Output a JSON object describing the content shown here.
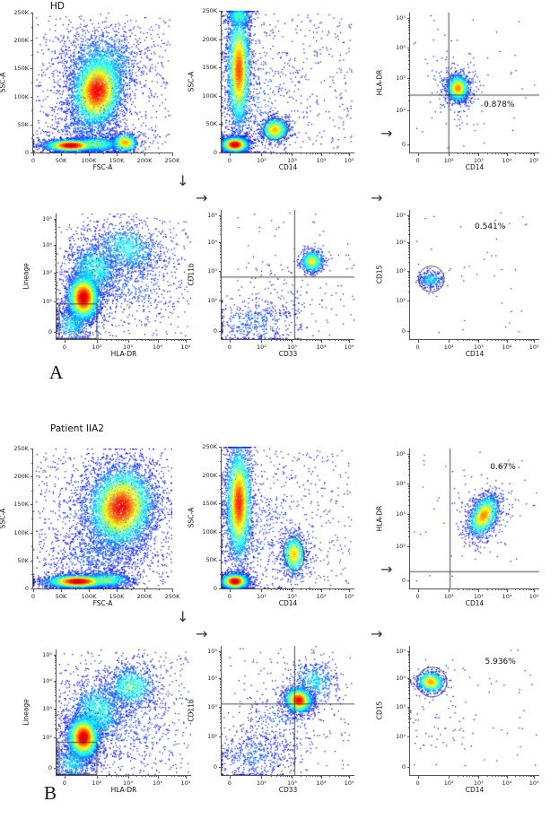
{
  "icons": {
    "arrow_right": "→",
    "arrow_down": "↓"
  },
  "chart_data": {
    "axes": {
      "lin250": {
        "scale": "linear",
        "range": [
          0,
          262144
        ],
        "ticks": [
          {
            "label": "0",
            "f": 0.0
          },
          {
            "label": "50K",
            "f": 0.2
          },
          {
            "label": "100K",
            "f": 0.4
          },
          {
            "label": "150K",
            "f": 0.6
          },
          {
            "label": "200K",
            "f": 0.8
          },
          {
            "label": "250K",
            "f": 1.0
          }
        ]
      },
      "log5": {
        "scale": "biexponential",
        "range": [
          0,
          100000
        ],
        "ticks": [
          {
            "label": "0",
            "f": 0.06
          },
          {
            "label": "10²",
            "f": 0.3
          },
          {
            "label": "10³",
            "f": 0.53
          },
          {
            "label": "10⁴",
            "f": 0.75
          },
          {
            "label": "10⁵",
            "f": 0.96
          }
        ]
      }
    },
    "panels": [
      {
        "title": "HD",
        "corner_label": "A",
        "plots": [
          {
            "type": "scatter",
            "xlabel": "FSC-A",
            "ylabel": "SSC-A",
            "x_axis": "lin250",
            "y_axis": "lin250",
            "clusters": [
              {
                "cx": 0.27,
                "cy": 0.05,
                "sx": 0.1,
                "sy": 0.022,
                "n": 2400,
                "d": 1.0
              },
              {
                "cx": 0.44,
                "cy": 0.06,
                "sx": 0.11,
                "sy": 0.03,
                "n": 900,
                "d": 0.5
              },
              {
                "cx": 0.66,
                "cy": 0.07,
                "sx": 0.05,
                "sy": 0.035,
                "n": 650,
                "d": 0.75
              },
              {
                "cx": 0.46,
                "cy": 0.44,
                "sx": 0.095,
                "sy": 0.14,
                "n": 3600,
                "d": 0.95,
                "rot": -8
              },
              {
                "cx": 0.5,
                "cy": 0.63,
                "sx": 0.15,
                "sy": 0.13,
                "n": 1100,
                "d": 0.33
              },
              {
                "cx": 0.38,
                "cy": 0.2,
                "sx": 0.13,
                "sy": 0.09,
                "n": 450,
                "d": 0.18
              }
            ],
            "noise": 550,
            "gates": [],
            "annotations": []
          },
          {
            "type": "scatter",
            "xlabel": "CD14",
            "ylabel": "SSC-A",
            "x_axis": "log5",
            "y_axis": "lin250",
            "clusters": [
              {
                "cx": 0.13,
                "cy": 0.58,
                "sx": 0.045,
                "sy": 0.22,
                "n": 2800,
                "d": 0.85
              },
              {
                "cx": 0.13,
                "cy": 0.96,
                "sx": 0.05,
                "sy": 0.04,
                "n": 420,
                "d": 0.45
              },
              {
                "cx": 0.1,
                "cy": 0.055,
                "sx": 0.055,
                "sy": 0.028,
                "n": 2100,
                "d": 1.0
              },
              {
                "cx": 0.4,
                "cy": 0.16,
                "sx": 0.055,
                "sy": 0.045,
                "n": 850,
                "d": 0.72
              },
              {
                "cx": 0.25,
                "cy": 0.35,
                "sx": 0.16,
                "sy": 0.22,
                "n": 330,
                "d": 0.13
              }
            ],
            "noise": 380,
            "gates": [
              {
                "type": "ellipse",
                "cx": 0.41,
                "cy": 0.165,
                "rx": 0.095,
                "ry": 0.075,
                "rot": -15
              }
            ],
            "annotations": []
          },
          {
            "type": "scatter",
            "xlabel": "CD14",
            "ylabel": "HLA-DR",
            "x_axis": "log5",
            "y_axis": "log5",
            "clusters": [
              {
                "cx": 0.37,
                "cy": 0.46,
                "sx": 0.045,
                "sy": 0.05,
                "n": 1000,
                "d": 0.78
              },
              {
                "cx": 0.37,
                "cy": 0.46,
                "sx": 0.09,
                "sy": 0.1,
                "n": 220,
                "d": 0.18
              }
            ],
            "noise": 55,
            "gates": [
              {
                "type": "cross",
                "x": 0.3,
                "y": 0.41
              }
            ],
            "annotations": [
              {
                "text": "0.878%",
                "x": 0.57,
                "y": 0.37
              }
            ]
          },
          {
            "type": "scatter",
            "xlabel": "HLA-DR",
            "ylabel": "Lineage",
            "x_axis": "log5",
            "y_axis": "log5",
            "clusters": [
              {
                "cx": 0.2,
                "cy": 0.33,
                "sx": 0.062,
                "sy": 0.1,
                "n": 3000,
                "d": 1.0
              },
              {
                "cx": 0.28,
                "cy": 0.55,
                "sx": 0.1,
                "sy": 0.12,
                "n": 1100,
                "d": 0.4
              },
              {
                "cx": 0.52,
                "cy": 0.72,
                "sx": 0.13,
                "sy": 0.1,
                "n": 850,
                "d": 0.35,
                "rot": -20
              },
              {
                "cx": 0.55,
                "cy": 0.45,
                "sx": 0.18,
                "sy": 0.15,
                "n": 380,
                "d": 0.14
              },
              {
                "cx": 0.12,
                "cy": 0.12,
                "sx": 0.07,
                "sy": 0.08,
                "n": 480,
                "d": 0.32
              }
            ],
            "noise": 420,
            "gates": [
              {
                "type": "rect",
                "x0": 0.02,
                "y0": 0.004,
                "x1": 0.3,
                "y1": 0.28
              }
            ],
            "annotations": []
          },
          {
            "type": "scatter",
            "xlabel": "CD33",
            "ylabel": "CD11b",
            "x_axis": "log5",
            "y_axis": "log5",
            "clusters": [
              {
                "cx": 0.68,
                "cy": 0.6,
                "sx": 0.045,
                "sy": 0.045,
                "n": 650,
                "d": 0.62
              },
              {
                "cx": 0.25,
                "cy": 0.13,
                "sx": 0.17,
                "sy": 0.09,
                "n": 430,
                "d": 0.14
              },
              {
                "cx": 0.5,
                "cy": 0.35,
                "sx": 0.2,
                "sy": 0.16,
                "n": 110,
                "d": 0.07
              }
            ],
            "noise": 70,
            "gates": [
              {
                "type": "cross",
                "x": 0.55,
                "y": 0.48
              }
            ],
            "annotations": []
          },
          {
            "type": "scatter",
            "xlabel": "CD14",
            "ylabel": "CD15",
            "x_axis": "log5",
            "y_axis": "log5",
            "clusters": [
              {
                "cx": 0.16,
                "cy": 0.46,
                "sx": 0.05,
                "sy": 0.035,
                "n": 250,
                "d": 0.3
              }
            ],
            "noise": 45,
            "gates": [
              {
                "type": "circle",
                "cx": 0.165,
                "cy": 0.465,
                "r": 0.1
              }
            ],
            "annotations": [
              {
                "text": "0.541%",
                "x": 0.5,
                "y": 0.9
              }
            ]
          }
        ]
      },
      {
        "title": "Patient IIA2",
        "corner_label": "B",
        "plots": [
          {
            "type": "scatter",
            "xlabel": "FSC-A",
            "ylabel": "SSC-A",
            "x_axis": "lin250",
            "y_axis": "lin250",
            "clusters": [
              {
                "cx": 0.32,
                "cy": 0.05,
                "sx": 0.12,
                "sy": 0.024,
                "n": 2400,
                "d": 1.0
              },
              {
                "cx": 0.52,
                "cy": 0.06,
                "sx": 0.1,
                "sy": 0.03,
                "n": 800,
                "d": 0.5
              },
              {
                "cx": 0.63,
                "cy": 0.58,
                "sx": 0.12,
                "sy": 0.15,
                "n": 4000,
                "d": 0.95,
                "rot": -12
              },
              {
                "cx": 0.6,
                "cy": 0.55,
                "sx": 0.18,
                "sy": 0.2,
                "n": 1300,
                "d": 0.3
              },
              {
                "cx": 0.45,
                "cy": 0.24,
                "sx": 0.16,
                "sy": 0.12,
                "n": 550,
                "d": 0.16
              }
            ],
            "noise": 650,
            "gates": [],
            "annotations": []
          },
          {
            "type": "scatter",
            "xlabel": "CD14",
            "ylabel": "SSC-A",
            "x_axis": "log5",
            "y_axis": "lin250",
            "clusters": [
              {
                "cx": 0.13,
                "cy": 0.6,
                "sx": 0.05,
                "sy": 0.21,
                "n": 3000,
                "d": 0.9
              },
              {
                "cx": 0.1,
                "cy": 0.05,
                "sx": 0.055,
                "sy": 0.028,
                "n": 1900,
                "d": 1.0
              },
              {
                "cx": 0.545,
                "cy": 0.24,
                "sx": 0.045,
                "sy": 0.075,
                "n": 850,
                "d": 0.7
              },
              {
                "cx": 0.3,
                "cy": 0.4,
                "sx": 0.18,
                "sy": 0.25,
                "n": 380,
                "d": 0.12
              }
            ],
            "noise": 420,
            "gates": [
              {
                "type": "ellipse",
                "cx": 0.545,
                "cy": 0.245,
                "rx": 0.075,
                "ry": 0.12,
                "rot": -8
              }
            ],
            "annotations": []
          },
          {
            "type": "scatter",
            "xlabel": "CD14",
            "ylabel": "HLA-DR",
            "x_axis": "log5",
            "y_axis": "log5",
            "clusters": [
              {
                "cx": 0.57,
                "cy": 0.52,
                "sx": 0.05,
                "sy": 0.085,
                "n": 1200,
                "d": 0.78,
                "rot": -30
              },
              {
                "cx": 0.57,
                "cy": 0.52,
                "sx": 0.09,
                "sy": 0.13,
                "n": 230,
                "d": 0.18,
                "rot": -30
              }
            ],
            "noise": 50,
            "gates": [
              {
                "type": "cross",
                "x": 0.31,
                "y": 0.12
              }
            ],
            "annotations": [
              {
                "text": "0.67%",
                "x": 0.62,
                "y": 0.9
              }
            ]
          },
          {
            "type": "scatter",
            "xlabel": "HLA-DR",
            "ylabel": "Lineage",
            "x_axis": "log5",
            "y_axis": "log5",
            "clusters": [
              {
                "cx": 0.2,
                "cy": 0.3,
                "sx": 0.062,
                "sy": 0.09,
                "n": 2800,
                "d": 1.0
              },
              {
                "cx": 0.3,
                "cy": 0.5,
                "sx": 0.11,
                "sy": 0.13,
                "n": 1200,
                "d": 0.4
              },
              {
                "cx": 0.55,
                "cy": 0.7,
                "sx": 0.1,
                "sy": 0.09,
                "n": 850,
                "d": 0.45
              },
              {
                "cx": 0.5,
                "cy": 0.4,
                "sx": 0.2,
                "sy": 0.18,
                "n": 420,
                "d": 0.13
              },
              {
                "cx": 0.12,
                "cy": 0.1,
                "sx": 0.08,
                "sy": 0.08,
                "n": 480,
                "d": 0.3
              }
            ],
            "noise": 420,
            "gates": [
              {
                "type": "rect",
                "x0": 0.02,
                "y0": 0.004,
                "x1": 0.3,
                "y1": 0.26
              }
            ],
            "annotations": []
          },
          {
            "type": "scatter",
            "xlabel": "CD33",
            "ylabel": "CD11b",
            "x_axis": "log5",
            "y_axis": "log5",
            "clusters": [
              {
                "cx": 0.58,
                "cy": 0.58,
                "sx": 0.055,
                "sy": 0.05,
                "n": 1500,
                "d": 0.95,
                "rot": -30
              },
              {
                "cx": 0.7,
                "cy": 0.72,
                "sx": 0.09,
                "sy": 0.08,
                "n": 480,
                "d": 0.3,
                "rot": -35
              },
              {
                "cx": 0.25,
                "cy": 0.15,
                "sx": 0.15,
                "sy": 0.1,
                "n": 480,
                "d": 0.14
              },
              {
                "cx": 0.42,
                "cy": 0.42,
                "sx": 0.13,
                "sy": 0.11,
                "n": 240,
                "d": 0.11
              }
            ],
            "noise": 160,
            "gates": [
              {
                "type": "cross",
                "x": 0.55,
                "y": 0.55
              }
            ],
            "annotations": []
          },
          {
            "type": "scatter",
            "xlabel": "CD14",
            "ylabel": "CD15",
            "x_axis": "log5",
            "y_axis": "log5",
            "clusters": [
              {
                "cx": 0.16,
                "cy": 0.72,
                "sx": 0.055,
                "sy": 0.042,
                "n": 750,
                "d": 0.75,
                "rot": -10
              },
              {
                "cx": 0.22,
                "cy": 0.35,
                "sx": 0.12,
                "sy": 0.12,
                "n": 45,
                "d": 0.07
              }
            ],
            "noise": 55,
            "gates": [
              {
                "type": "circle",
                "cx": 0.17,
                "cy": 0.72,
                "r": 0.115
              }
            ],
            "annotations": [
              {
                "text": "5.936%",
                "x": 0.58,
                "y": 0.91
              }
            ]
          }
        ]
      }
    ]
  }
}
